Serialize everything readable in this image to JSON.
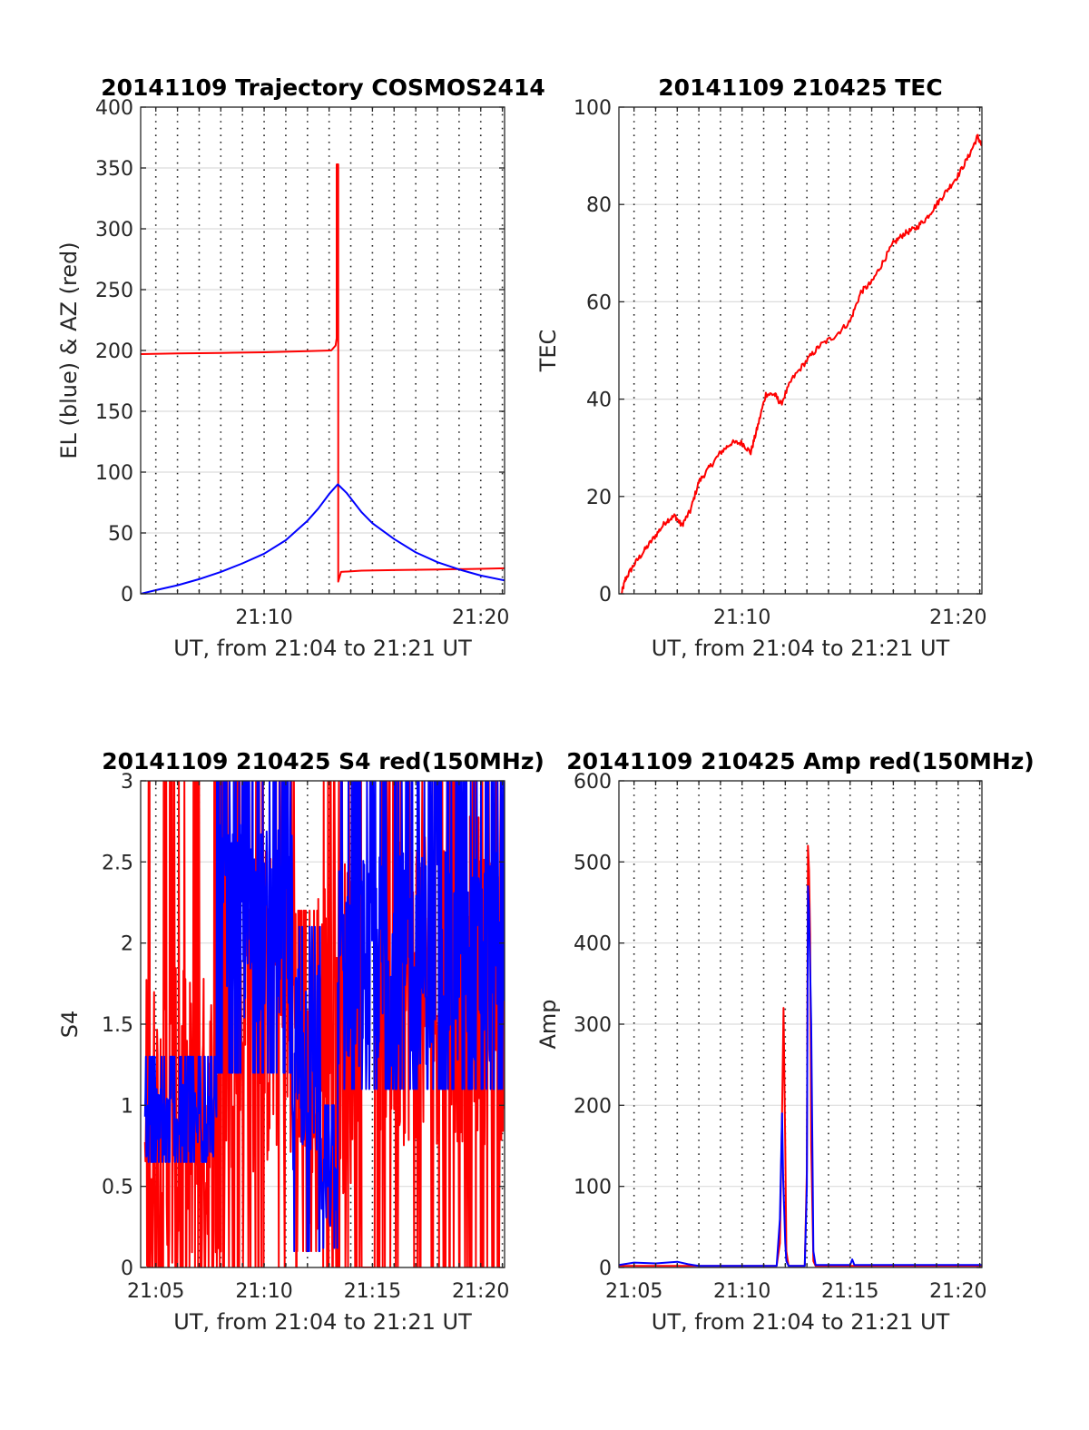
{
  "chart_data": [
    {
      "id": "traj",
      "type": "line",
      "title": "20141109 Trajectory COSMOS2414",
      "xlabel": "UT, from 21:04 to 21:21 UT",
      "ylabel": "EL (blue) & AZ (red)",
      "xlim": [
        4.3,
        21.1
      ],
      "ylim": [
        0,
        400
      ],
      "yticks": [
        0,
        50,
        100,
        150,
        200,
        250,
        300,
        350,
        400
      ],
      "xticks": [
        10,
        20
      ],
      "xtick_labels": [
        "21:10",
        "21:20"
      ],
      "grid": true,
      "series": [
        {
          "color": "#ff0000",
          "kind": "azimuth",
          "x": [
            4.3,
            6,
            8,
            10,
            12,
            13.1,
            13.3,
            13.35,
            13.35,
            13.42,
            13.42,
            13.55,
            14.5,
            16,
            18,
            20,
            21.1
          ],
          "y": [
            197,
            197.5,
            198,
            198.5,
            199.5,
            200,
            204,
            210,
            353,
            353,
            10,
            18,
            19,
            19.5,
            20,
            20.5,
            21
          ]
        },
        {
          "color": "#0000ff",
          "kind": "elevation",
          "x": [
            4.3,
            5,
            6,
            7,
            8,
            9,
            10,
            11,
            12,
            12.5,
            13,
            13.4,
            13.8,
            14.5,
            15,
            16,
            17,
            18,
            19,
            20,
            21.1
          ],
          "y": [
            0,
            3,
            7,
            12,
            18,
            25,
            33,
            44,
            60,
            70,
            82,
            90,
            83,
            67,
            58,
            45,
            34,
            26,
            20,
            15,
            11
          ]
        }
      ]
    },
    {
      "id": "tec",
      "type": "line",
      "title": "20141109 210425 TEC",
      "xlabel": "UT, from 21:04 to 21:21 UT",
      "ylabel": "TEC",
      "xlim": [
        4.3,
        21.1
      ],
      "ylim": [
        0,
        100
      ],
      "yticks": [
        0,
        20,
        40,
        60,
        80,
        100
      ],
      "xticks": [
        10,
        20
      ],
      "xtick_labels": [
        "21:10",
        "21:20"
      ],
      "grid": true,
      "series": [
        {
          "color": "#ff0000",
          "x": [
            4.42,
            4.6,
            5,
            5.5,
            6,
            6.5,
            6.9,
            7.2,
            7.6,
            8,
            8.5,
            9,
            9.5,
            10,
            10.4,
            10.7,
            11.1,
            11.5,
            11.8,
            12.3,
            13,
            13.6,
            14.3,
            15,
            15.5,
            16,
            16.5,
            17,
            17.5,
            18,
            18.5,
            19,
            19.5,
            20,
            20.5,
            20.9,
            21.1
          ],
          "y": [
            0,
            3,
            6,
            9,
            12,
            15,
            16,
            14,
            17,
            23,
            26,
            29,
            31,
            31,
            29,
            34,
            41,
            41,
            39,
            44,
            48,
            51,
            53,
            56,
            62,
            64,
            68,
            72,
            74,
            75,
            77,
            80,
            83,
            86,
            90,
            94,
            92
          ]
        }
      ]
    },
    {
      "id": "s4",
      "type": "line",
      "title": "20141109 210425 S4 red(150MHz)",
      "xlabel": "UT, from 21:04 to 21:21 UT",
      "ylabel": "S4",
      "xlim": [
        4.3,
        21.1
      ],
      "ylim": [
        0,
        3
      ],
      "yticks": [
        0,
        0.5,
        1,
        1.5,
        2,
        2.5,
        3
      ],
      "ytick_labels": [
        "0",
        "0.5",
        "1",
        "1.5",
        "2",
        "2.5",
        "3"
      ],
      "xticks": [
        5,
        10,
        15,
        20
      ],
      "xtick_labels": [
        "21:05",
        "21:10",
        "21:15",
        "21:20"
      ],
      "grid": true,
      "series": [
        {
          "color": "#ff0000",
          "kind": "noise",
          "segments": [
            {
              "x0": 4.5,
              "x1": 8.0,
              "lo": 0,
              "hi": 3,
              "base": 0.8,
              "n": 150
            },
            {
              "x0": 8.0,
              "x1": 11.5,
              "lo": 0,
              "hi": 3,
              "base": 1.6,
              "n": 140
            },
            {
              "x0": 11.5,
              "x1": 12.5,
              "lo": 0.1,
              "hi": 2.2,
              "base": 0.9,
              "n": 40
            },
            {
              "x0": 12.5,
              "x1": 14.5,
              "lo": 0,
              "hi": 3,
              "base": 1.5,
              "n": 80
            },
            {
              "x0": 15.1,
              "x1": 21.1,
              "lo": 0,
              "hi": 3,
              "base": 1.8,
              "n": 240
            }
          ]
        },
        {
          "color": "#0000ff",
          "kind": "noise",
          "segments": [
            {
              "x0": 4.5,
              "x1": 7.8,
              "lo": 0.65,
              "hi": 1.3,
              "base": 0.9,
              "n": 160
            },
            {
              "x0": 7.8,
              "x1": 11.3,
              "lo": 1.2,
              "hi": 3,
              "base": 2.1,
              "n": 180
            },
            {
              "x0": 11.3,
              "x1": 12.6,
              "lo": 0.1,
              "hi": 2.1,
              "base": 1.3,
              "n": 60
            },
            {
              "x0": 12.6,
              "x1": 13.4,
              "lo": 0.12,
              "hi": 1.0,
              "base": 0.5,
              "n": 30
            },
            {
              "x0": 13.4,
              "x1": 21.1,
              "lo": 1.1,
              "hi": 3,
              "base": 1.9,
              "n": 360
            }
          ]
        }
      ]
    },
    {
      "id": "amp",
      "type": "line",
      "title": "20141109 210425 Amp red(150MHz)",
      "xlabel": "UT, from 21:04 to 21:21 UT",
      "ylabel": "Amp",
      "xlim": [
        4.3,
        21.1
      ],
      "ylim": [
        0,
        600
      ],
      "yticks": [
        0,
        100,
        200,
        300,
        400,
        500,
        600
      ],
      "xticks": [
        5,
        10,
        15,
        20
      ],
      "xtick_labels": [
        "21:05",
        "21:10",
        "21:15",
        "21:20"
      ],
      "grid": true,
      "series": [
        {
          "color": "#ff0000",
          "x": [
            4.3,
            11.6,
            11.75,
            11.85,
            11.92,
            12.0,
            12.05,
            12.15,
            12.9,
            13.0,
            13.05,
            13.1,
            13.15,
            13.2,
            13.3,
            13.4,
            21.1
          ],
          "y": [
            2,
            2,
            30,
            190,
            320,
            150,
            20,
            2,
            2,
            120,
            520,
            490,
            410,
            150,
            8,
            2,
            2
          ]
        },
        {
          "color": "#0000ff",
          "x": [
            4.3,
            5,
            6,
            7,
            7.5,
            8,
            11.6,
            11.75,
            11.85,
            11.9,
            12.0,
            12.05,
            12.15,
            12.9,
            13.0,
            13.05,
            13.1,
            13.2,
            13.3,
            13.4,
            15.0,
            15.1,
            15.2,
            21.1
          ],
          "y": [
            3,
            6,
            5,
            7,
            4,
            2,
            2,
            60,
            190,
            110,
            30,
            8,
            2,
            2,
            100,
            470,
            440,
            300,
            20,
            3,
            3,
            10,
            3,
            3
          ]
        }
      ]
    }
  ]
}
